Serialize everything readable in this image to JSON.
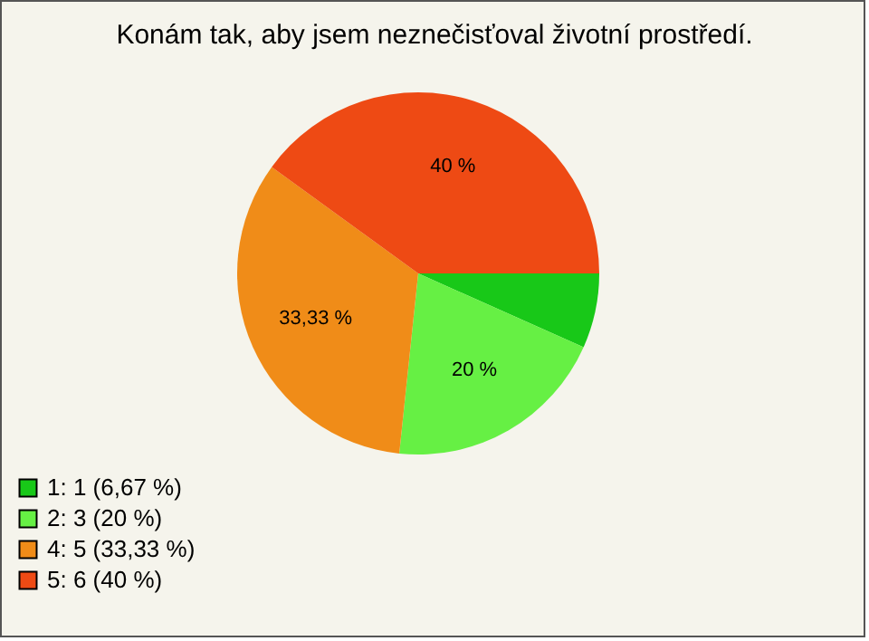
{
  "chart_data": {
    "type": "pie",
    "title": "Konám tak, aby jsem neznečisťoval životní prostředí.",
    "categories": [
      "1: 1 (6,67 %)",
      "2: 3 (20 %)",
      "4: 5 (33,33 %)",
      "5: 6 (40 %)"
    ],
    "values": [
      6.67,
      20,
      33.33,
      40
    ],
    "colors": [
      "#18c818",
      "#66f044",
      "#f08c18",
      "#ee4a14"
    ],
    "value_labels": [
      null,
      "20 %",
      "33,33 %",
      "40 %"
    ],
    "legend": "bottom left"
  }
}
